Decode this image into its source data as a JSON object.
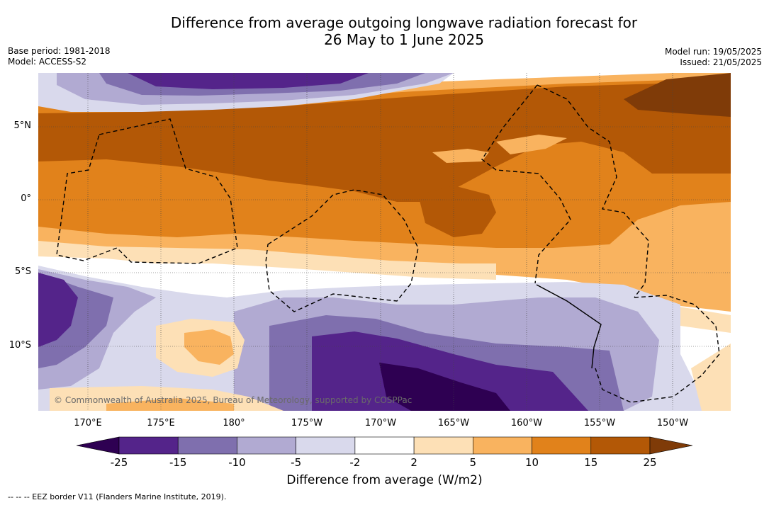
{
  "header": {
    "title_line1": "Difference from average outgoing longwave radiation forecast for",
    "title_line2": "26 May to 1 June 2025",
    "base_period": "Base period: 1981-2018",
    "model": "Model: ACCESS-S2",
    "model_run": "Model run: 19/05/2025",
    "issued": "Issued: 21/05/2025"
  },
  "map": {
    "lon_ticks": [
      "170°E",
      "175°E",
      "180°",
      "175°W",
      "170°W",
      "165°W",
      "160°W",
      "155°W",
      "150°W"
    ],
    "lat_ticks": [
      "5°N",
      "0°",
      "5°S",
      "10°S"
    ],
    "copyright": "© Commonwealth of Australia 2025, Bureau of Meteorology, supported by COSPPac"
  },
  "colorbar": {
    "levels": [
      "-25",
      "-15",
      "-10",
      "-5",
      "-2",
      "2",
      "5",
      "10",
      "15",
      "25"
    ],
    "colors": [
      "#2e0052",
      "#54248a",
      "#7f6fae",
      "#b1aad2",
      "#d9d9ec",
      "#ffffff",
      "#fde0b6",
      "#f9b35f",
      "#e1821b",
      "#b35806",
      "#7f3b08"
    ],
    "title": "Difference from average (W/m2)"
  },
  "footnote": "--  --  -- EEZ border V11 (Flanders Marine Institute, 2019)."
}
